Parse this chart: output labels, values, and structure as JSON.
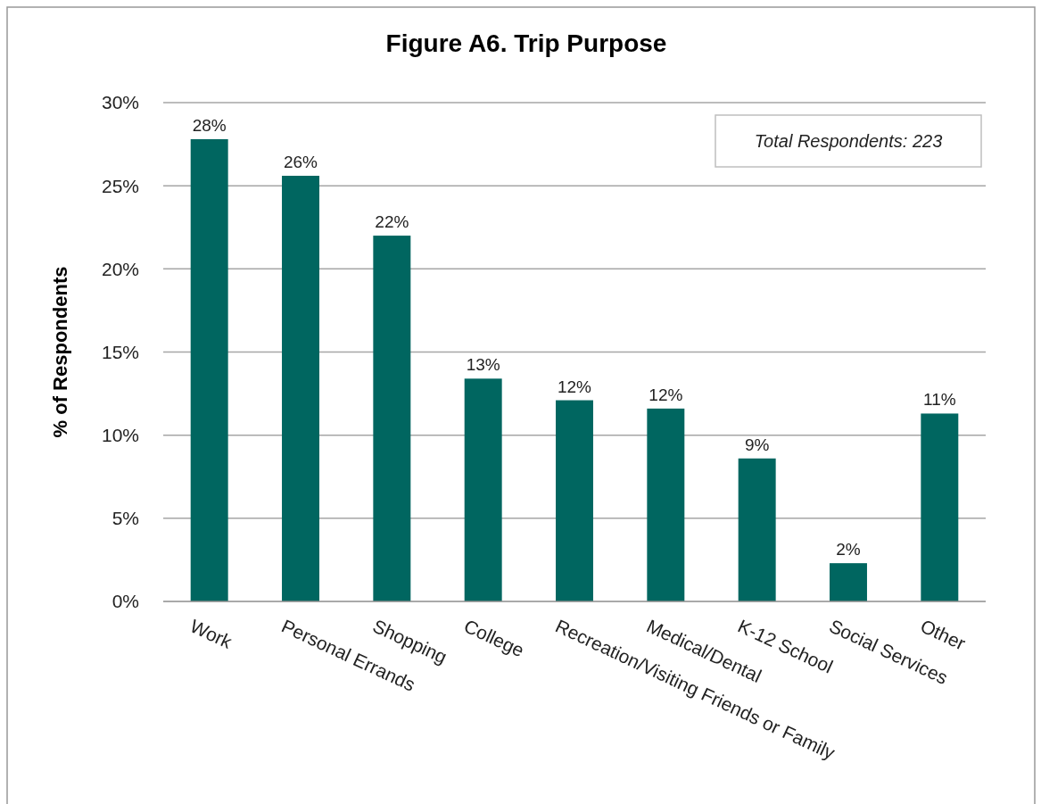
{
  "chart_data": {
    "type": "bar",
    "title": "Figure A6. Trip Purpose",
    "ylabel": "% of Respondents",
    "categories": [
      "Work",
      "Personal Errands",
      "Shopping",
      "College",
      "Recreation/Visiting Friends or Family",
      "Medical/Dental",
      "K-12 School",
      "Social Services",
      "Other"
    ],
    "values": [
      27.8,
      25.6,
      22.0,
      13.4,
      12.1,
      11.6,
      8.6,
      2.3,
      11.3
    ],
    "value_labels": [
      "28%",
      "26%",
      "22%",
      "13%",
      "12%",
      "12%",
      "9%",
      "2%",
      "11%"
    ],
    "color": "#006660",
    "ylim": [
      0,
      30
    ],
    "yticks": [
      {
        "value": 0,
        "label": "0%"
      },
      {
        "value": 5,
        "label": "5%"
      },
      {
        "value": 10,
        "label": "10%"
      },
      {
        "value": 15,
        "label": "15%"
      },
      {
        "value": 20,
        "label": "20%"
      },
      {
        "value": 25,
        "label": "25%"
      },
      {
        "value": 30,
        "label": "30%"
      }
    ],
    "grid": "y",
    "annotations": [
      "Total Respondents: 223"
    ]
  }
}
